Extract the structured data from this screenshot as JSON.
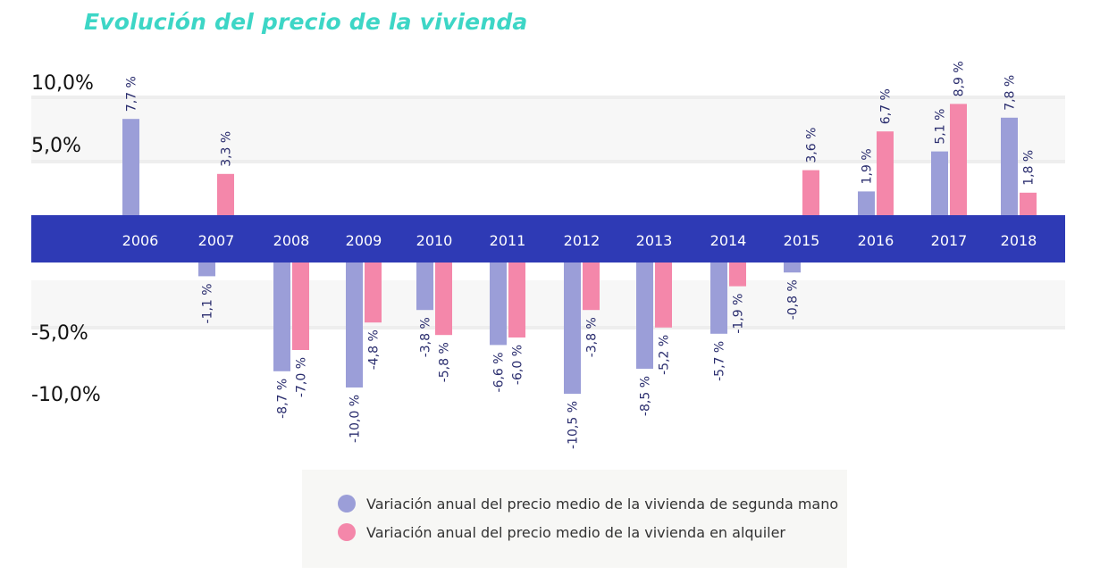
{
  "title": "Evolución del precio de la vivienda",
  "colors": {
    "series1": "#9b9ed8",
    "series2": "#f487aa",
    "band": "#2e3ab5",
    "title": "#3dd6c6",
    "label": "#2a2d6e"
  },
  "legend": {
    "items": [
      {
        "label": "Variación anual del precio medio de la vivienda de segunda mano"
      },
      {
        "label": "Variación anual del precio medio de la vivienda en alquiler"
      }
    ]
  },
  "chart_data": {
    "type": "bar",
    "title": "Evolución del precio de la vivienda",
    "xlabel": "",
    "ylabel": "",
    "ylim": [
      -10,
      10
    ],
    "yticks": [
      "10,0%",
      "5,0%",
      "-5,0%",
      "-10,0%"
    ],
    "categories": [
      "2006",
      "2007",
      "2008",
      "2009",
      "2010",
      "2011",
      "2012",
      "2013",
      "2014",
      "2015",
      "2016",
      "2017",
      "2018"
    ],
    "series": [
      {
        "name": "Variación anual del precio medio de la vivienda de segunda mano",
        "values": [
          7.7,
          -1.1,
          -8.7,
          -10.0,
          -3.8,
          -6.6,
          -10.5,
          -8.5,
          -5.7,
          -0.8,
          1.9,
          5.1,
          7.8
        ],
        "labels": [
          "7,7 %",
          "-1,1 %",
          "-8,7 %",
          "-10,0 %",
          "-3,8 %",
          "-6,6 %",
          "-10,5 %",
          "-8,5 %",
          "-5,7 %",
          "-0,8 %",
          "1,9 %",
          "5,1 %",
          "7,8 %"
        ]
      },
      {
        "name": "Variación anual del precio medio de la vivienda en alquiler",
        "values": [
          null,
          3.3,
          -7.0,
          -4.8,
          -5.8,
          -6.0,
          -3.8,
          -5.2,
          -1.9,
          3.6,
          6.7,
          8.9,
          1.8
        ],
        "labels": [
          "",
          "3,3 %",
          "-7,0 %",
          "-4,8 %",
          "-5,8 %",
          "-6,0 %",
          "-3,8 %",
          "-5,2 %",
          "-1,9 %",
          "3,6 %",
          "6,7 %",
          "8,9 %",
          "1,8 %"
        ]
      }
    ],
    "legend_position": "bottom-center",
    "grid": true
  }
}
